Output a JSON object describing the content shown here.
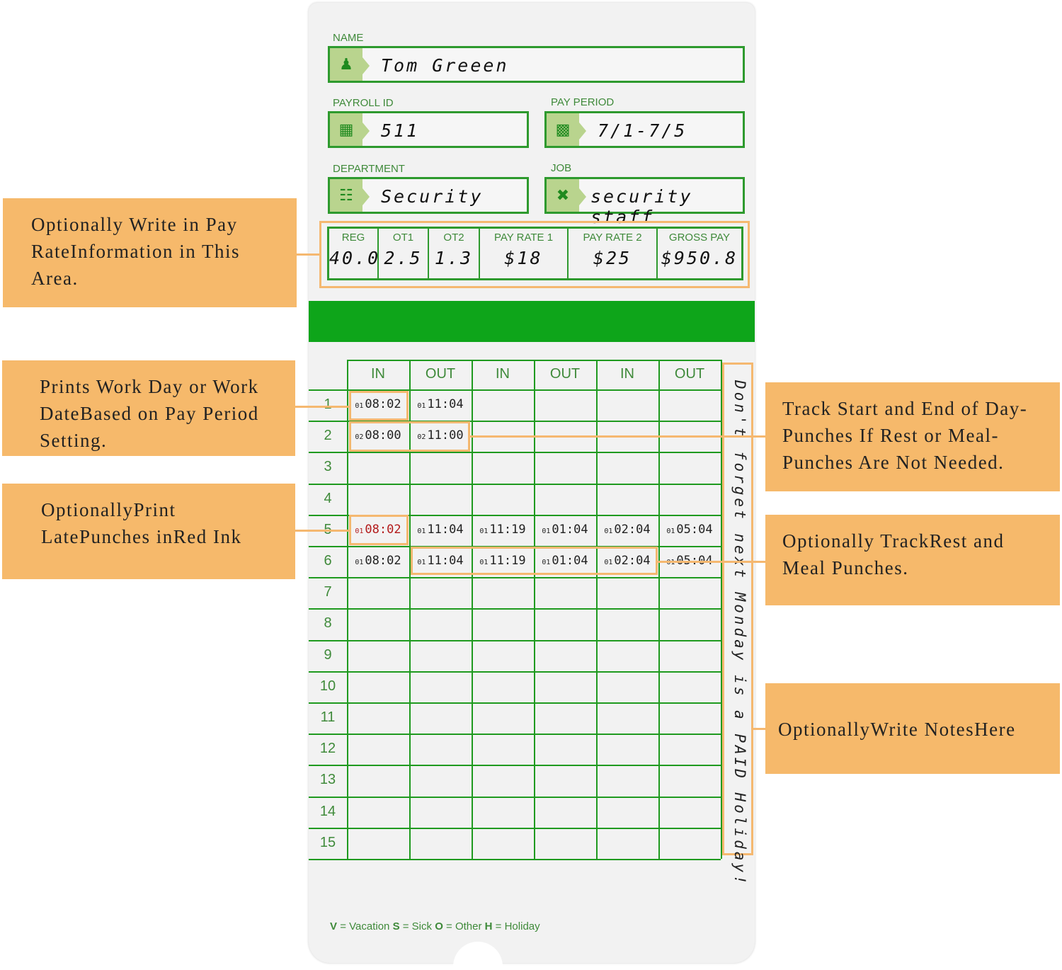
{
  "card": {
    "name": {
      "label": "NAME",
      "value": "Tom Greeen",
      "icon": "person-icon"
    },
    "payroll_id": {
      "label": "PAYROLL ID",
      "value": "511",
      "icon": "id-badge-icon"
    },
    "pay_period": {
      "label": "PAY PERIOD",
      "value": "7/1-7/5",
      "icon": "calendar-icon"
    },
    "department": {
      "label": "DEPARTMENT",
      "value": "Security",
      "icon": "org-chart-icon"
    },
    "job": {
      "label": "JOB",
      "value": "security staff",
      "icon": "tools-icon"
    },
    "pay": [
      {
        "h": "REG",
        "v": "40.0"
      },
      {
        "h": "OT1",
        "v": "2.5"
      },
      {
        "h": "OT2",
        "v": "1.3"
      },
      {
        "h": "PAY RATE 1",
        "v": "$18"
      },
      {
        "h": "PAY RATE 2",
        "v": "$25"
      },
      {
        "h": "GROSS PAY",
        "v": "$950.8"
      }
    ],
    "columns": [
      "IN",
      "OUT",
      "IN",
      "OUT",
      "IN",
      "OUT"
    ],
    "rows": [
      "1",
      "2",
      "3",
      "4",
      "5",
      "6",
      "7",
      "8",
      "9",
      "10",
      "11",
      "12",
      "13",
      "14",
      "15"
    ],
    "punches": [
      {
        "row": 0,
        "col": 0,
        "day": "01",
        "time": "08:02"
      },
      {
        "row": 0,
        "col": 1,
        "day": "01",
        "time": "11:04"
      },
      {
        "row": 1,
        "col": 0,
        "day": "02",
        "time": "08:00"
      },
      {
        "row": 1,
        "col": 1,
        "day": "02",
        "time": "11:00"
      },
      {
        "row": 4,
        "col": 0,
        "day": "01",
        "time": "08:02",
        "late": true
      },
      {
        "row": 4,
        "col": 1,
        "day": "01",
        "time": "11:04"
      },
      {
        "row": 4,
        "col": 2,
        "day": "01",
        "time": "11:19"
      },
      {
        "row": 4,
        "col": 3,
        "day": "01",
        "time": "01:04"
      },
      {
        "row": 4,
        "col": 4,
        "day": "01",
        "time": "02:04"
      },
      {
        "row": 4,
        "col": 5,
        "day": "01",
        "time": "05:04"
      },
      {
        "row": 5,
        "col": 0,
        "day": "01",
        "time": "08:02"
      },
      {
        "row": 5,
        "col": 1,
        "day": "01",
        "time": "11:04"
      },
      {
        "row": 5,
        "col": 2,
        "day": "01",
        "time": "11:19"
      },
      {
        "row": 5,
        "col": 3,
        "day": "01",
        "time": "01:04"
      },
      {
        "row": 5,
        "col": 4,
        "day": "01",
        "time": "02:04"
      },
      {
        "row": 5,
        "col": 5,
        "day": "01",
        "time": "05:04"
      }
    ],
    "late_color": "#b31b1b",
    "notes": "Don't forget next Monday is a PAID Holiday!",
    "legend": [
      {
        "k": "V",
        "v": "= Vacation"
      },
      {
        "k": "S",
        "v": "= Sick"
      },
      {
        "k": "O",
        "v": "= Other"
      },
      {
        "k": "H",
        "v": "= Holiday"
      }
    ]
  },
  "callouts": {
    "pay_rate": "Optionally Write in Pay RateInformation in This Area.",
    "work_day": "Prints Work Day or Work DateBased on Pay Period Setting.",
    "late": "OptionallyPrint LatePunches inRed Ink",
    "start_end": "Track Start and End of Day-Punches If Rest or Meal-Punches Are Not Needed.",
    "rest_meal": "Optionally TrackRest and Meal Punches.",
    "notes": "OptionallyWrite NotesHere"
  },
  "colors": {
    "green": "#1f9a1f",
    "callout": "#f6b96b",
    "bar": "#0ea51a"
  }
}
